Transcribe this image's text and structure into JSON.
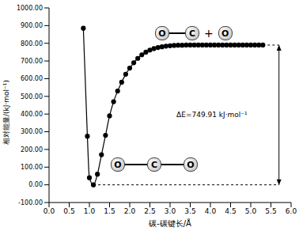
{
  "chart_data": {
    "type": "line",
    "x_label": "碳-碳键长/Å",
    "y_label": "相对能量/(kJ·mol⁻¹)",
    "x": [
      0.85,
      0.95,
      1.0,
      1.1,
      1.2,
      1.3,
      1.4,
      1.5,
      1.6,
      1.7,
      1.8,
      1.9,
      2.0,
      2.1,
      2.2,
      2.3,
      2.4,
      2.5,
      2.6,
      2.7,
      2.8,
      2.9,
      3.0,
      3.1,
      3.2,
      3.3,
      3.4,
      3.5,
      3.6,
      3.7,
      3.8,
      3.9,
      4.0,
      4.1,
      4.2,
      4.3,
      4.4,
      4.5,
      4.6,
      4.7,
      4.8,
      4.9,
      5.0,
      5.1,
      5.2,
      5.3
    ],
    "values": [
      885,
      275,
      40,
      0,
      60,
      170,
      280,
      390,
      470,
      530,
      580,
      625,
      660,
      690,
      715,
      735,
      750,
      762,
      770,
      776,
      780,
      784,
      786,
      788,
      789,
      789,
      790,
      790,
      790,
      790,
      790,
      790,
      790,
      790,
      790,
      790,
      790,
      790,
      790,
      790,
      790,
      790,
      790,
      790,
      790,
      790
    ],
    "color": "#000000",
    "marker": "circle",
    "line_style": "solid",
    "xlim": [
      0,
      6.0
    ],
    "xticks": [
      {
        "value": 0,
        "label": "0.0"
      },
      {
        "value": 0.5,
        "label": "0.5"
      },
      {
        "value": 1.0,
        "label": "1.0"
      },
      {
        "value": 1.5,
        "label": "1.5"
      },
      {
        "value": 2.0,
        "label": "2.0"
      },
      {
        "value": 2.5,
        "label": "2.5"
      },
      {
        "value": 3.0,
        "label": "3.0"
      },
      {
        "value": 3.5,
        "label": "3.5"
      },
      {
        "value": 4.0,
        "label": "4.0"
      },
      {
        "value": 4.5,
        "label": "4.5"
      },
      {
        "value": 5.0,
        "label": "5.0"
      },
      {
        "value": 5.5,
        "label": "5.5"
      },
      {
        "value": 6.0,
        "label": "6.0"
      }
    ],
    "ylim": [
      -100,
      1000
    ],
    "yticks": [
      {
        "value": -100,
        "label": "-100.00"
      },
      {
        "value": 0,
        "label": "0.00"
      },
      {
        "value": 100,
        "label": "100.00"
      },
      {
        "value": 200,
        "label": "200.00"
      },
      {
        "value": 300,
        "label": "300.00"
      },
      {
        "value": 400,
        "label": "400.00"
      },
      {
        "value": 500,
        "label": "500.00"
      },
      {
        "value": 600,
        "label": "600.00"
      },
      {
        "value": 700,
        "label": "700.00"
      },
      {
        "value": 800,
        "label": "800.00"
      },
      {
        "value": 900,
        "label": "900.00"
      },
      {
        "value": 1000,
        "label": "1000.00"
      }
    ],
    "grid": false,
    "annotations": {
      "delta_e": "ΔE=749.91 kJ·mol⁻¹",
      "reactant": [
        "O",
        "C",
        "O"
      ],
      "products": [
        "O",
        "C",
        "+",
        "O"
      ]
    }
  }
}
